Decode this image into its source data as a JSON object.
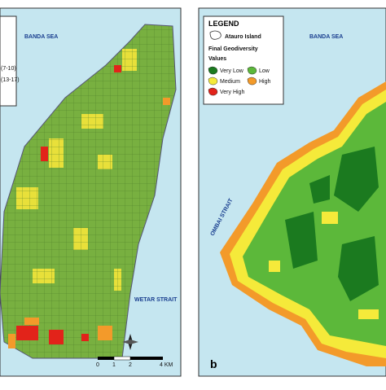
{
  "left_panel": {
    "sea_north": "BANDA SEA",
    "sea_south": "WETAR STRAIT",
    "legend_fragments": [
      "(7-10)",
      "(13-17)"
    ],
    "scale_bar": [
      "0",
      "1",
      "2",
      "4 KM"
    ]
  },
  "right_panel": {
    "legend": {
      "title": "LEGEND",
      "boundary": "Atauro Island",
      "subtitle": "Final Geodiversity",
      "values_title": "Values",
      "classes": [
        {
          "label": "Very Low",
          "color": "#1b7a1f"
        },
        {
          "label": "Low",
          "color": "#5cb83a"
        },
        {
          "label": "Medium",
          "color": "#f5ea3a"
        },
        {
          "label": "High",
          "color": "#f39a2a"
        },
        {
          "label": "Very High",
          "color": "#e2231a"
        }
      ]
    },
    "sea_north": "BANDA SEA",
    "strait": "OMBAI STRAIT",
    "panel_letter": "b"
  }
}
